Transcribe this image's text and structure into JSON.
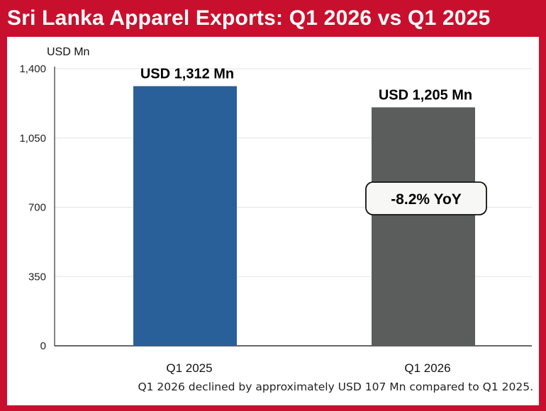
{
  "title": "Sri Lanka Apparel Exports: Q1 2026 vs Q1 2025",
  "footnote": "Q1 2026 declined by approximately USD 107 Mn compared to Q1 2025.",
  "colors": {
    "frame": "#c8102e",
    "bar_q1_2025": "#2a6099",
    "bar_q1_2026": "#5a5d5c"
  },
  "chart_data": {
    "type": "bar",
    "ylabel": "USD Mn",
    "xlabel": "",
    "ylim": [
      0,
      1400
    ],
    "yticks": [
      0,
      350,
      700,
      1050,
      1400
    ],
    "ytick_labels": [
      "0",
      "350",
      "700",
      "1,050",
      "1,400"
    ],
    "grid": true,
    "categories": [
      "Q1 2025",
      "Q1 2026"
    ],
    "values": [
      1312,
      1205
    ],
    "bar_colors": [
      "#2a6099",
      "#5a5d5c"
    ],
    "data_labels": [
      "USD 1,312 Mn",
      "USD 1,205 Mn"
    ],
    "annotation": "-8.2% YoY"
  }
}
